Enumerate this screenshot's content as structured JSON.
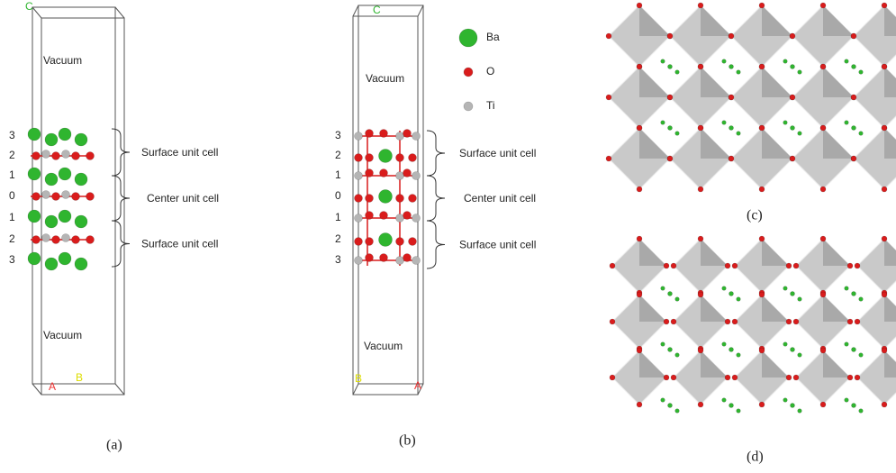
{
  "panels": [
    {
      "label": "(a)",
      "axis_c": "C",
      "axis_a": "A",
      "axis_b": "B",
      "vacuum_top": "Vacuum",
      "vacuum_bottom": "Vacuum",
      "layers": [
        "3",
        "2",
        "1",
        "0",
        "1",
        "2",
        "3"
      ],
      "brackets": [
        "Surface unit cell",
        "Center unit cell",
        "Surface unit cell"
      ]
    },
    {
      "label": "(b)",
      "axis_c": "C",
      "axis_a": "A",
      "axis_b": "B",
      "vacuum_top": "Vacuum",
      "vacuum_bottom": "Vacuum",
      "layers": [
        "3",
        "2",
        "1",
        "0",
        "1",
        "2",
        "3"
      ],
      "brackets": [
        "Surface unit cell",
        "Center unit cell",
        "Surface unit cell"
      ],
      "legend": [
        "Ba",
        "O",
        "Ti"
      ]
    },
    {
      "label": "(c)"
    },
    {
      "label": "(d)"
    }
  ]
}
